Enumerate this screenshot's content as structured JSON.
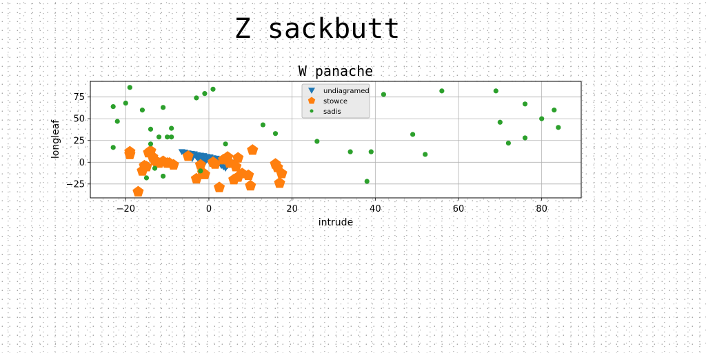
{
  "figure": {
    "suptitle": "Z sackbutt"
  },
  "chart_data": {
    "type": "scatter",
    "title": "W panache",
    "xlabel": "intrude",
    "ylabel": "longleaf",
    "xlim": [
      -28.5,
      89.5
    ],
    "ylim": [
      -41,
      93
    ],
    "xticks": [
      -20,
      0,
      20,
      40,
      60,
      80
    ],
    "yticks": [
      -25,
      0,
      25,
      50,
      75
    ],
    "xtick_labels": [
      "−20",
      "0",
      "20",
      "40",
      "60",
      "80"
    ],
    "ytick_labels": [
      "−25",
      "0",
      "25",
      "50",
      "75"
    ],
    "grid": true,
    "legend_position": "upper center",
    "series": [
      {
        "name": "undiagramed",
        "marker": "triangle-down",
        "color": "#1f77b4",
        "points": [
          [
            -6.5,
            12
          ],
          [
            -5.8,
            11.5
          ],
          [
            -5,
            10.5
          ],
          [
            -4.2,
            10
          ],
          [
            -3.5,
            9.5
          ],
          [
            -2.8,
            8.5
          ],
          [
            -2,
            8
          ],
          [
            -1.2,
            7.5
          ],
          [
            -0.5,
            6.5
          ],
          [
            0.3,
            6
          ],
          [
            1,
            5
          ],
          [
            1.8,
            4.5
          ],
          [
            2.5,
            3.5
          ],
          [
            3.2,
            2.5
          ],
          [
            4,
            2
          ],
          [
            4.8,
            1
          ],
          [
            5.5,
            0
          ],
          [
            6.2,
            -0.5
          ],
          [
            4,
            -7
          ],
          [
            3.5,
            -5.5
          ],
          [
            3,
            -4
          ],
          [
            2.2,
            -3
          ],
          [
            1.5,
            -1.5
          ],
          [
            0.8,
            -0.5
          ],
          [
            0,
            1
          ],
          [
            -0.8,
            2
          ],
          [
            -1.5,
            3.5
          ],
          [
            -2.2,
            4.5
          ],
          [
            -3,
            6
          ],
          [
            -3.8,
            7
          ],
          [
            -4.5,
            8.5
          ],
          [
            -5.2,
            9.5
          ],
          [
            -6,
            11
          ],
          [
            -2,
            1
          ],
          [
            -1,
            2
          ],
          [
            1,
            1
          ],
          [
            2,
            0
          ],
          [
            3,
            -1
          ],
          [
            4.5,
            -4
          ],
          [
            5,
            -3
          ],
          [
            6,
            -1
          ],
          [
            5.5,
            -2.5
          ],
          [
            -4,
            4
          ],
          [
            -2.5,
            3
          ],
          [
            0,
            4
          ],
          [
            2,
            2.5
          ],
          [
            -1,
            -1
          ]
        ]
      },
      {
        "name": "stowce",
        "marker": "pentagon",
        "color": "#ff7f0e",
        "points": [
          [
            -19,
            9
          ],
          [
            -19,
            12
          ],
          [
            -17,
            -34
          ],
          [
            -16,
            -10
          ],
          [
            -15.5,
            -4
          ],
          [
            -15,
            -5
          ],
          [
            -14.5,
            11
          ],
          [
            -14,
            13
          ],
          [
            -13.5,
            6
          ],
          [
            -13,
            2
          ],
          [
            -12.5,
            0
          ],
          [
            -12,
            -1
          ],
          [
            -11,
            1
          ],
          [
            -10,
            -1
          ],
          [
            -9.5,
            -1
          ],
          [
            -8.5,
            -3
          ],
          [
            -5,
            7
          ],
          [
            -3,
            -19
          ],
          [
            -2,
            -3
          ],
          [
            -1.5,
            -12
          ],
          [
            -1,
            -14
          ],
          [
            1,
            0
          ],
          [
            1.5,
            -2
          ],
          [
            2.5,
            -29
          ],
          [
            3.5,
            3
          ],
          [
            4.5,
            6
          ],
          [
            5,
            -1
          ],
          [
            6,
            -20
          ],
          [
            7,
            -17
          ],
          [
            8,
            -13
          ],
          [
            9.5,
            -15
          ],
          [
            10,
            -27
          ],
          [
            10.5,
            14
          ],
          [
            16,
            -2
          ],
          [
            16.5,
            -6
          ],
          [
            17,
            -24
          ],
          [
            17.5,
            -13
          ],
          [
            7,
            5
          ],
          [
            6.5,
            -5
          ]
        ]
      },
      {
        "name": "sadis",
        "marker": "circle",
        "color": "#2ca02c",
        "points": [
          [
            -23,
            17
          ],
          [
            -23,
            64
          ],
          [
            -22,
            47
          ],
          [
            -20,
            68
          ],
          [
            -19,
            86
          ],
          [
            -16,
            60
          ],
          [
            -15,
            -18
          ],
          [
            -14,
            38
          ],
          [
            -14,
            21
          ],
          [
            -13,
            -7
          ],
          [
            -12,
            29
          ],
          [
            -11,
            63
          ],
          [
            -11,
            -16
          ],
          [
            -10,
            29
          ],
          [
            -9,
            39
          ],
          [
            -9,
            29
          ],
          [
            -3,
            74
          ],
          [
            -2,
            -10
          ],
          [
            -1,
            79
          ],
          [
            1,
            84
          ],
          [
            4,
            21
          ],
          [
            13,
            43
          ],
          [
            16,
            33
          ],
          [
            26,
            24
          ],
          [
            34,
            12
          ],
          [
            38,
            -22
          ],
          [
            39,
            12
          ],
          [
            42,
            78
          ],
          [
            49,
            32
          ],
          [
            52,
            9
          ],
          [
            56,
            82
          ],
          [
            69,
            82
          ],
          [
            70,
            46
          ],
          [
            72,
            22
          ],
          [
            76,
            67
          ],
          [
            76,
            28
          ],
          [
            80,
            50
          ],
          [
            83,
            60
          ],
          [
            84,
            40
          ]
        ]
      }
    ]
  }
}
